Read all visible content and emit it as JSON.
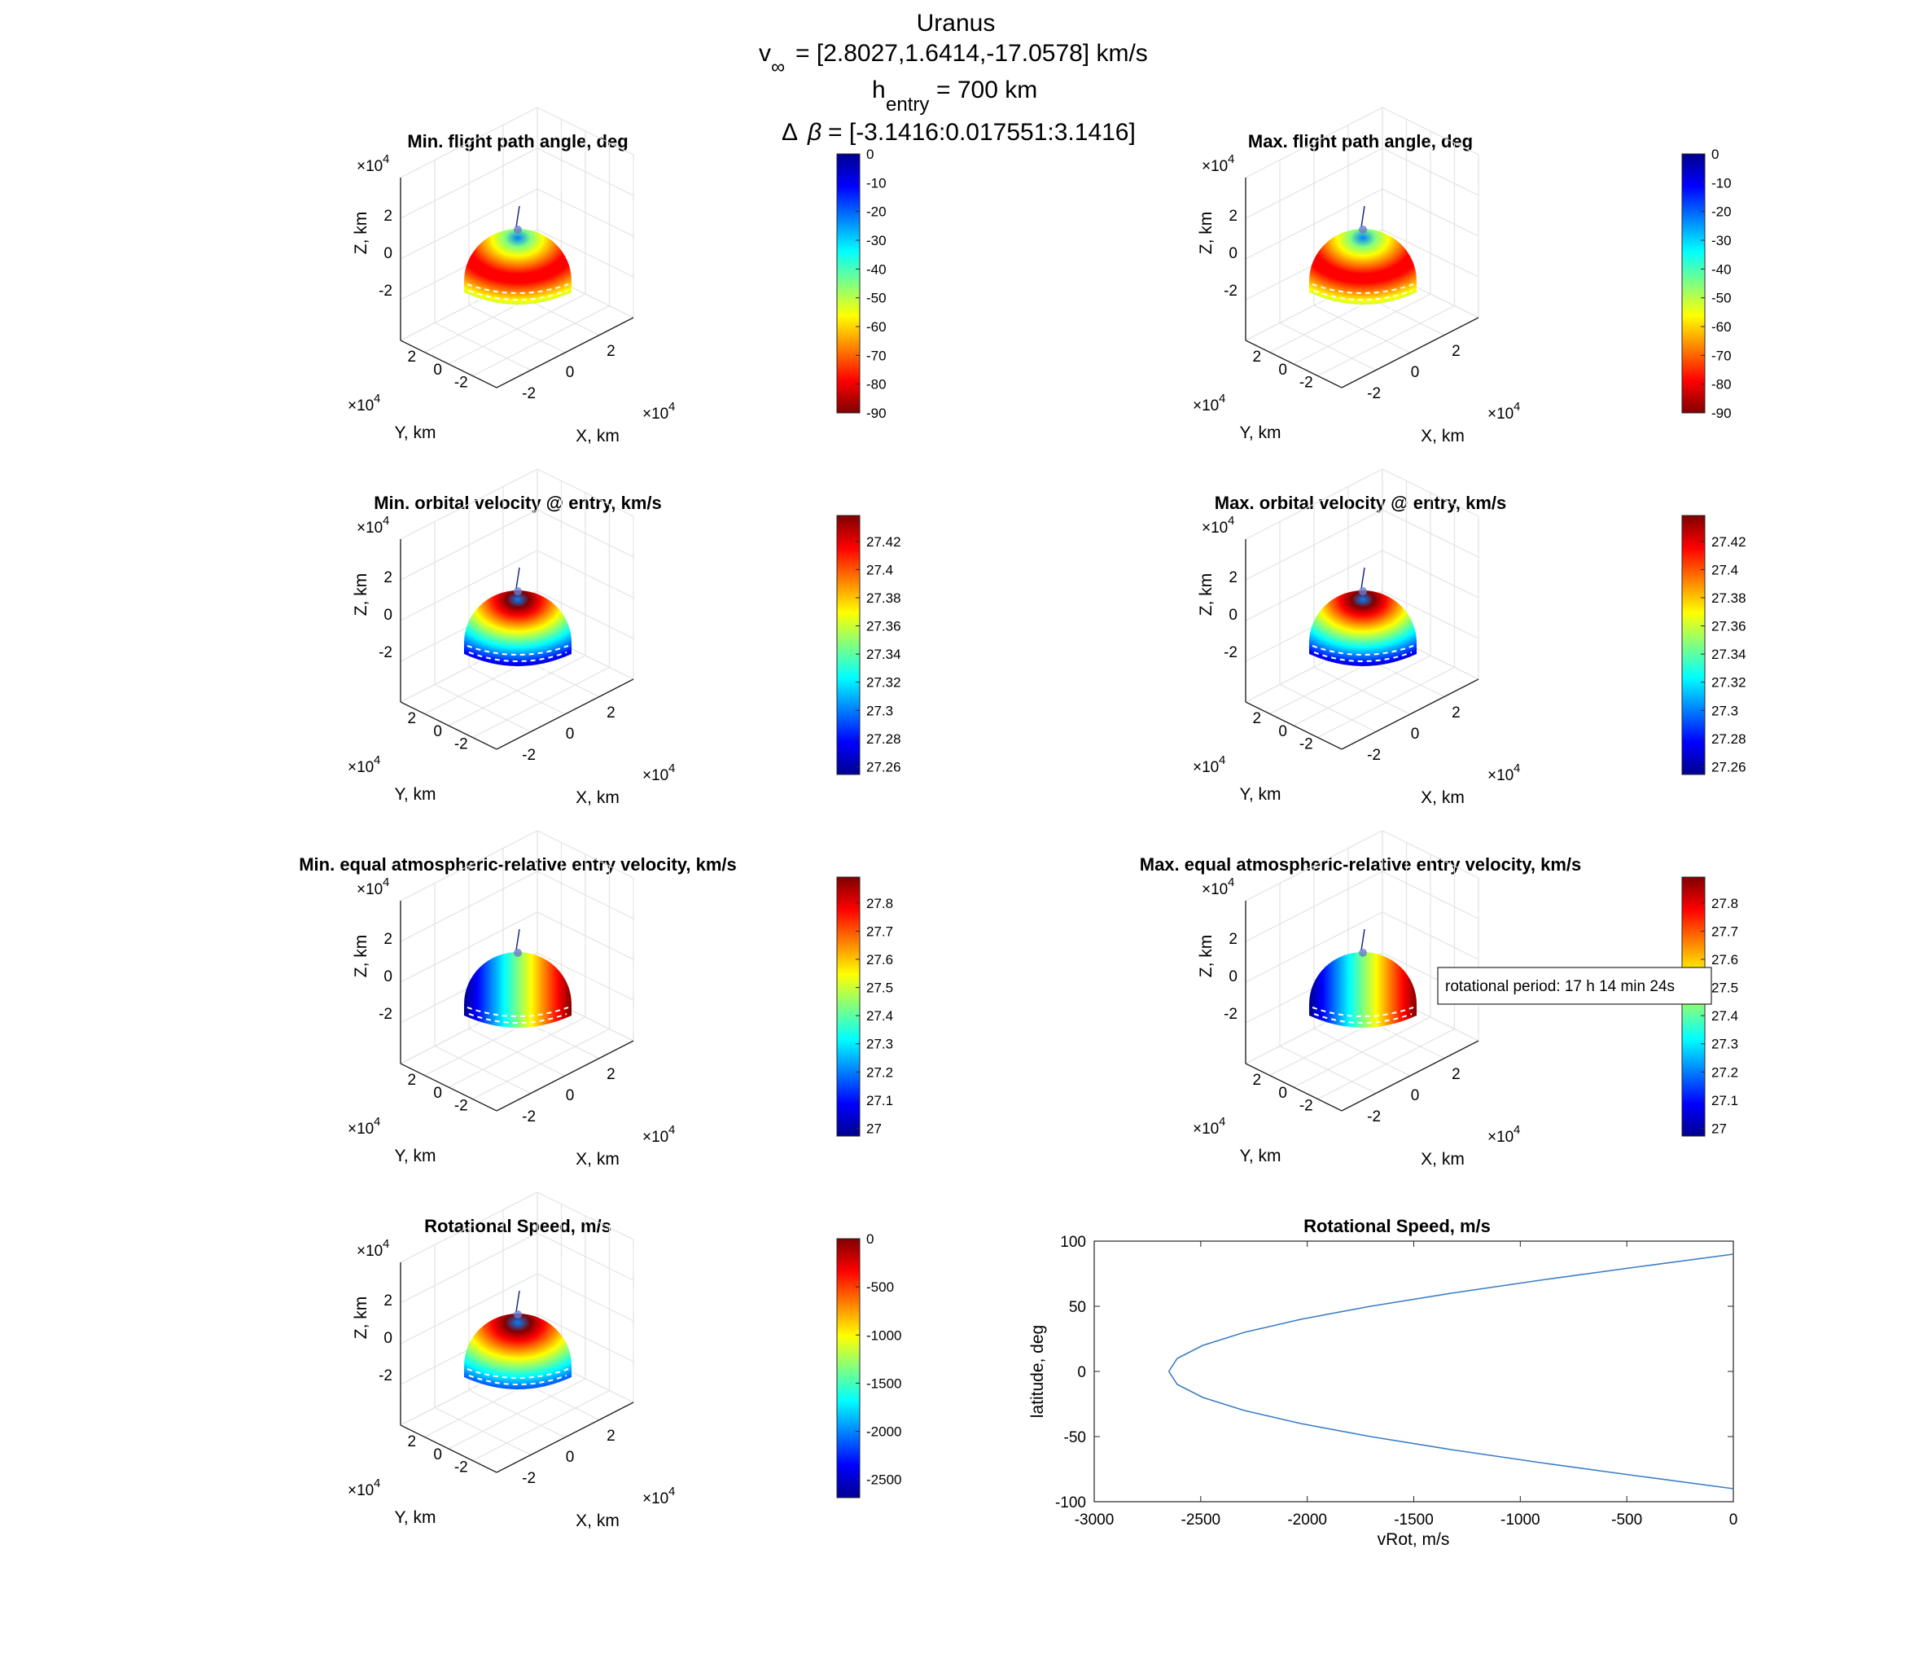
{
  "figure": {
    "planet": "Uranus",
    "vinf_value": "= [2.8027,1.6414,-17.0578] km/s",
    "hentry_value": "= 700 km",
    "dbeta_value": "= [-3.1416:0.017551:3.1416]",
    "annotation": "rotational period: 17 h 14 min 24s"
  },
  "colors": {
    "jet": [
      "#00008f",
      "#0000ff",
      "#0080ff",
      "#00ffff",
      "#80ff80",
      "#ffff00",
      "#ff8000",
      "#ff0000",
      "#800000"
    ],
    "line": "#3a7dc4",
    "grid": "#e3e3e3",
    "axis": "#262626"
  },
  "sphere_axes": {
    "z_label": "Z, km",
    "y_label": "Y, km",
    "x_label": "X, km",
    "exponent": "×10",
    "exponent_power": "4",
    "z_ticks": [
      "2",
      "0",
      "-2"
    ],
    "y_ticks": [
      "2",
      "0",
      "-2"
    ],
    "x_ticks": [
      "-2",
      "0",
      "2"
    ]
  },
  "panels": [
    {
      "title": "Min. flight path angle, deg",
      "pattern": "polar",
      "colorbar": {
        "ticks": [
          "0",
          "-10",
          "-20",
          "-30",
          "-40",
          "-50",
          "-60",
          "-70",
          "-80",
          "-90"
        ],
        "top_is_blue": true
      }
    },
    {
      "title": "Max. flight path angle, deg",
      "pattern": "polar",
      "colorbar": {
        "ticks": [
          "0",
          "-10",
          "-20",
          "-30",
          "-40",
          "-50",
          "-60",
          "-70",
          "-80",
          "-90"
        ],
        "top_is_blue": true
      }
    },
    {
      "title": "Min. orbital velocity @ entry, km/s",
      "pattern": "polar-steep",
      "colorbar": {
        "ticks": [
          "27.42",
          "27.4",
          "27.38",
          "27.36",
          "27.34",
          "27.32",
          "27.3",
          "27.28",
          "27.26"
        ],
        "top_is_blue": false
      }
    },
    {
      "title": "Max. orbital velocity @ entry, km/s",
      "pattern": "polar-steep",
      "colorbar": {
        "ticks": [
          "27.42",
          "27.4",
          "27.38",
          "27.36",
          "27.34",
          "27.32",
          "27.3",
          "27.28",
          "27.26"
        ],
        "top_is_blue": false
      }
    },
    {
      "title": "Min. equal atmospheric-relative entry velocity, km/s",
      "pattern": "horizontal",
      "colorbar": {
        "ticks": [
          "27.8",
          "27.7",
          "27.6",
          "27.5",
          "27.4",
          "27.3",
          "27.2",
          "27.1",
          "27"
        ],
        "top_is_blue": false
      }
    },
    {
      "title": "Max. equal atmospheric-relative entry velocity, km/s",
      "pattern": "horizontal",
      "colorbar": {
        "ticks": [
          "27.8",
          "27.7",
          "27.6",
          "27.5",
          "27.4",
          "27.3",
          "27.2",
          "27.1",
          "27"
        ],
        "top_is_blue": false
      }
    },
    {
      "title": "Rotational Speed, m/s",
      "pattern": "rotational",
      "colorbar": {
        "ticks": [
          "0",
          "-500",
          "-1000",
          "-1500",
          "-2000",
          "-2500"
        ],
        "top_is_blue": false
      }
    }
  ],
  "chart_data": {
    "type": "line",
    "title": "Rotational Speed, m/s",
    "xlabel": "vRot, m/s",
    "ylabel": "latitude, deg",
    "xlim": [
      -3000,
      0
    ],
    "ylim": [
      -100,
      100
    ],
    "xticks": [
      "-3000",
      "-2500",
      "-2000",
      "-1500",
      "-1000",
      "-500",
      "0"
    ],
    "yticks": [
      "100",
      "50",
      "0",
      "-50",
      "-100"
    ],
    "equatorial_speed": -2650,
    "series": [
      {
        "x": [
          -2650,
          -2610,
          -2490,
          -2295,
          -2030,
          -1703,
          -1325,
          -906,
          -460,
          0
        ],
        "y": [
          0,
          10,
          20,
          30,
          40,
          50,
          60,
          70,
          80,
          90
        ]
      },
      {
        "x": [
          -2650,
          -2610,
          -2490,
          -2295,
          -2030,
          -1703,
          -1325,
          -906,
          -460,
          0
        ],
        "y": [
          0,
          -10,
          -20,
          -30,
          -40,
          -50,
          -60,
          -70,
          -80,
          -90
        ]
      }
    ]
  }
}
